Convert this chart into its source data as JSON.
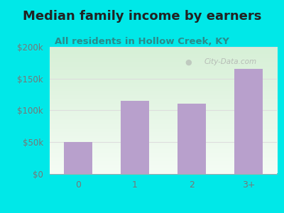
{
  "title": "Median family income by earners",
  "subtitle": "All residents in Hollow Creek, KY",
  "categories": [
    "0",
    "1",
    "2",
    "3+"
  ],
  "values": [
    50000,
    115000,
    110000,
    165000
  ],
  "bar_color": "#b8a0cc",
  "outer_bg_color": "#00e8e8",
  "plot_bg_color_top_left": "#d8efd8",
  "plot_bg_color_bottom_right": "#f5fbf5",
  "plot_bg_color_white": "#f0f8ff",
  "title_color": "#222222",
  "subtitle_color": "#2a8a8a",
  "tick_label_color": "#777777",
  "ylim": [
    0,
    200000
  ],
  "yticks": [
    0,
    50000,
    100000,
    150000,
    200000
  ],
  "ytick_labels": [
    "$0",
    "$50k",
    "$100k",
    "$150k",
    "$200k"
  ],
  "title_fontsize": 13,
  "subtitle_fontsize": 9.5,
  "watermark_text": "City-Data.com",
  "watermark_color": "#aaaaaa",
  "grid_color": "#dddddd"
}
